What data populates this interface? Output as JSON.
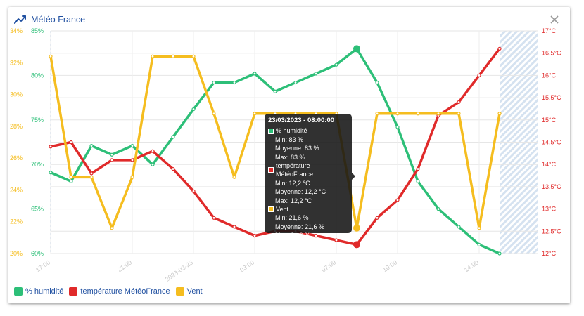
{
  "header": {
    "title": "Météo France",
    "icon": "trend-line-icon",
    "close_icon": "close-icon"
  },
  "colors": {
    "humidity": "#2dbf78",
    "temperature": "#e02a2a",
    "wind": "#f5bd1f",
    "title": "#1f4fa0"
  },
  "legend": [
    {
      "label": "% humidité",
      "color": "#2dbf78"
    },
    {
      "label": "température MétéoFrance",
      "color": "#e02a2a"
    },
    {
      "label": "Vent",
      "color": "#f5bd1f"
    }
  ],
  "tooltip": {
    "title": "23/03/2023 - 08:00:00",
    "series": [
      {
        "name": "% humidité",
        "color": "#2dbf78",
        "min": "Min: 83 %",
        "avg": "Moyenne: 83 %",
        "max": "Max: 83 %"
      },
      {
        "name": "température MétéoFrance",
        "color": "#e02a2a",
        "min": "Min: 12,2 °C",
        "avg": "Moyenne: 12,2 °C",
        "max": "Max: 12,2 °C"
      },
      {
        "name": "Vent",
        "color": "#f5bd1f",
        "min": "Min: 21,6 %",
        "avg": "Moyenne: 21,6 %",
        "max": "Max: 21,6 %"
      }
    ]
  },
  "chart_data": {
    "type": "line",
    "x_ticks": [
      "17:00",
      "21:00",
      "2023-03-23",
      "03:00",
      "07:00",
      "10:00",
      "14:00"
    ],
    "x_tick_hours": [
      0,
      4,
      7,
      10,
      14,
      17,
      21
    ],
    "axes": {
      "wind": {
        "labels": [
          "20%",
          "22%",
          "24%",
          "26%",
          "28%",
          "30%",
          "32%",
          "34%"
        ],
        "min": 20,
        "max": 34
      },
      "humidity": {
        "labels": [
          "60%",
          "65%",
          "70%",
          "75%",
          "80%",
          "85%"
        ],
        "min": 60,
        "max": 85
      },
      "temperature": {
        "labels": [
          "12°C",
          "12.5°C",
          "13°C",
          "13.5°C",
          "14°C",
          "14.5°C",
          "15°C",
          "15.5°C",
          "16°C",
          "16.5°C",
          "17°C"
        ],
        "min": 12,
        "max": 17
      }
    },
    "hatched_region_start_hour": 22,
    "hatched_region_end_hour": 24,
    "grid": true,
    "legend_position": "bottom-left",
    "series": [
      {
        "name": "% humidité",
        "axis": "humidity",
        "color": "#2dbf78",
        "x": [
          0,
          1,
          2,
          3,
          4,
          5,
          6,
          7,
          8,
          9,
          10,
          11,
          12,
          13,
          14,
          15,
          16,
          17,
          18,
          19,
          20,
          21,
          22
        ],
        "values": [
          69.1,
          68.1,
          72.1,
          71.1,
          72.1,
          70.0,
          73.1,
          76.2,
          79.2,
          79.2,
          80.2,
          78.2,
          79.2,
          80.2,
          81.2,
          83.0,
          79.2,
          74.2,
          68.1,
          65.0,
          63.0,
          61.0,
          60.0
        ]
      },
      {
        "name": "température MétéoFrance",
        "axis": "temperature",
        "color": "#e02a2a",
        "x": [
          0,
          1,
          2,
          3,
          4,
          5,
          6,
          7,
          8,
          9,
          10,
          11,
          12,
          13,
          14,
          15,
          16,
          17,
          18,
          19,
          20,
          21,
          22
        ],
        "values": [
          14.4,
          14.5,
          13.8,
          14.1,
          14.1,
          14.3,
          13.9,
          13.4,
          12.8,
          12.6,
          12.4,
          12.5,
          12.5,
          12.4,
          12.3,
          12.2,
          12.8,
          13.2,
          13.9,
          15.1,
          15.4,
          16.0,
          16.6
        ]
      },
      {
        "name": "Vent",
        "axis": "wind",
        "color": "#f5bd1f",
        "x": [
          0,
          1,
          2,
          3,
          4,
          5,
          6,
          7,
          8,
          9,
          10,
          11,
          12,
          13,
          14,
          15,
          16,
          17,
          18,
          19,
          20,
          21,
          22
        ],
        "values": [
          32.4,
          24.8,
          24.8,
          21.6,
          24.8,
          32.4,
          32.4,
          32.4,
          28.8,
          24.8,
          28.8,
          28.8,
          28.8,
          28.8,
          28.8,
          21.6,
          28.8,
          28.8,
          28.8,
          28.8,
          28.8,
          21.6,
          28.8
        ]
      }
    ],
    "highlight_x": 15
  }
}
